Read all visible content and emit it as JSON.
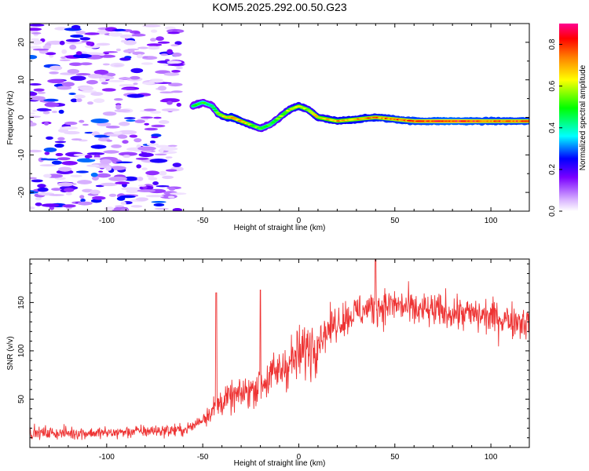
{
  "title": "KOM5.2025.292.00.50.G23",
  "chart_data": [
    {
      "type": "heatmap",
      "name": "spectrogram",
      "xlabel": "Height of straight line (km)",
      "ylabel": "Frequency (Hz)",
      "xlim": [
        -140,
        120
      ],
      "ylim": [
        -25,
        25
      ],
      "xticks": [
        "-100",
        "-50",
        "0",
        "50",
        "100"
      ],
      "xtick_values": [
        -100,
        -50,
        0,
        50,
        100
      ],
      "yticks": [
        "-20",
        "-10",
        "0",
        "10",
        "20"
      ],
      "ytick_values": [
        -20,
        -10,
        0,
        10,
        20
      ],
      "colorbar": {
        "label": "Normalized spectral amplitude",
        "range": [
          0.0,
          0.9
        ],
        "ticks": [
          "0.0",
          "0.2",
          "0.4",
          "0.6",
          "0.8"
        ],
        "tick_values": [
          0.0,
          0.2,
          0.4,
          0.6,
          0.8
        ]
      },
      "ridge": {
        "x": [
          -55,
          -50,
          -45,
          -42,
          -38,
          -35,
          -30,
          -25,
          -20,
          -15,
          -10,
          -5,
          0,
          5,
          10,
          20,
          40,
          60,
          80,
          100,
          120
        ],
        "y": [
          3,
          4,
          3,
          1,
          0,
          0,
          -1,
          -2,
          -3,
          -2,
          0,
          2,
          3,
          2,
          0,
          -1,
          0,
          -1,
          -1,
          -1,
          -1
        ],
        "amplitude": [
          0.45,
          0.5,
          0.45,
          0.55,
          0.65,
          0.75,
          0.7,
          0.6,
          0.55,
          0.5,
          0.55,
          0.6,
          0.65,
          0.6,
          0.65,
          0.7,
          0.75,
          0.8,
          0.85,
          0.8,
          0.8
        ]
      },
      "noise_region_x": [
        -140,
        -62
      ],
      "noise_amplitude_range": [
        0.02,
        0.3
      ]
    },
    {
      "type": "line",
      "name": "snr",
      "color": "#ee3333",
      "xlabel": "Height of straight line (km)",
      "ylabel": "SNR (v/v)",
      "xlim": [
        -140,
        120
      ],
      "ylim": [
        0,
        195
      ],
      "xticks": [
        "-100",
        "-50",
        "0",
        "50",
        "100"
      ],
      "xtick_values": [
        -100,
        -50,
        0,
        50,
        100
      ],
      "yticks": [
        "50",
        "100",
        "150"
      ],
      "ytick_values": [
        50,
        100,
        150
      ],
      "trend": {
        "x": [
          -140,
          -100,
          -80,
          -60,
          -55,
          -50,
          -40,
          -30,
          -20,
          -10,
          0,
          10,
          20,
          30,
          40,
          50,
          60,
          80,
          100,
          120
        ],
        "y": [
          15,
          15,
          17,
          18,
          22,
          30,
          48,
          55,
          65,
          80,
          95,
          112,
          130,
          140,
          145,
          148,
          142,
          140,
          135,
          130
        ]
      },
      "spikes": [
        {
          "x": -43,
          "y": 160
        },
        {
          "x": -20,
          "y": 163
        },
        {
          "x": 40,
          "y": 195
        }
      ]
    }
  ]
}
